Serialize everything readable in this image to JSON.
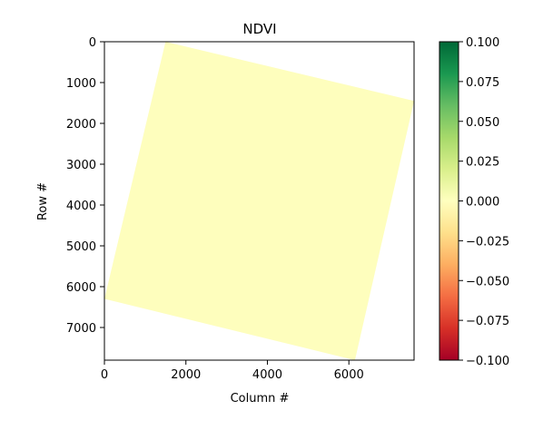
{
  "chart_data": {
    "type": "heatmap",
    "title": "NDVI",
    "xlabel": "Column #",
    "ylabel": "Row #",
    "xlim": [
      0,
      7600
    ],
    "ylim": [
      7800,
      0
    ],
    "x_ticks": [
      0,
      2000,
      4000,
      6000
    ],
    "y_ticks": [
      0,
      1000,
      2000,
      3000,
      4000,
      5000,
      6000,
      7000
    ],
    "grid": false,
    "fill_value": 0.0,
    "fill_color": "#fefebd",
    "footprint_corners": [
      {
        "x": 1500,
        "y": 0
      },
      {
        "x": 7600,
        "y": 1450
      },
      {
        "x": 6150,
        "y": 7800
      },
      {
        "x": 0,
        "y": 6300
      }
    ],
    "colorbar": {
      "colormap": "RdYlGn",
      "min": -0.1,
      "max": 0.1,
      "ticks": [
        "0.100",
        "0.075",
        "0.050",
        "0.025",
        "0.000",
        "−0.025",
        "−0.050",
        "−0.075",
        "−0.100"
      ],
      "tick_values": [
        0.1,
        0.075,
        0.05,
        0.025,
        0.0,
        -0.025,
        -0.05,
        -0.075,
        -0.1
      ],
      "colors": [
        "#a50026",
        "#d73027",
        "#f46d43",
        "#fdae61",
        "#fee08b",
        "#ffffbf",
        "#d9ef8b",
        "#a6d96a",
        "#66bd63",
        "#1a9850",
        "#006837"
      ]
    }
  }
}
